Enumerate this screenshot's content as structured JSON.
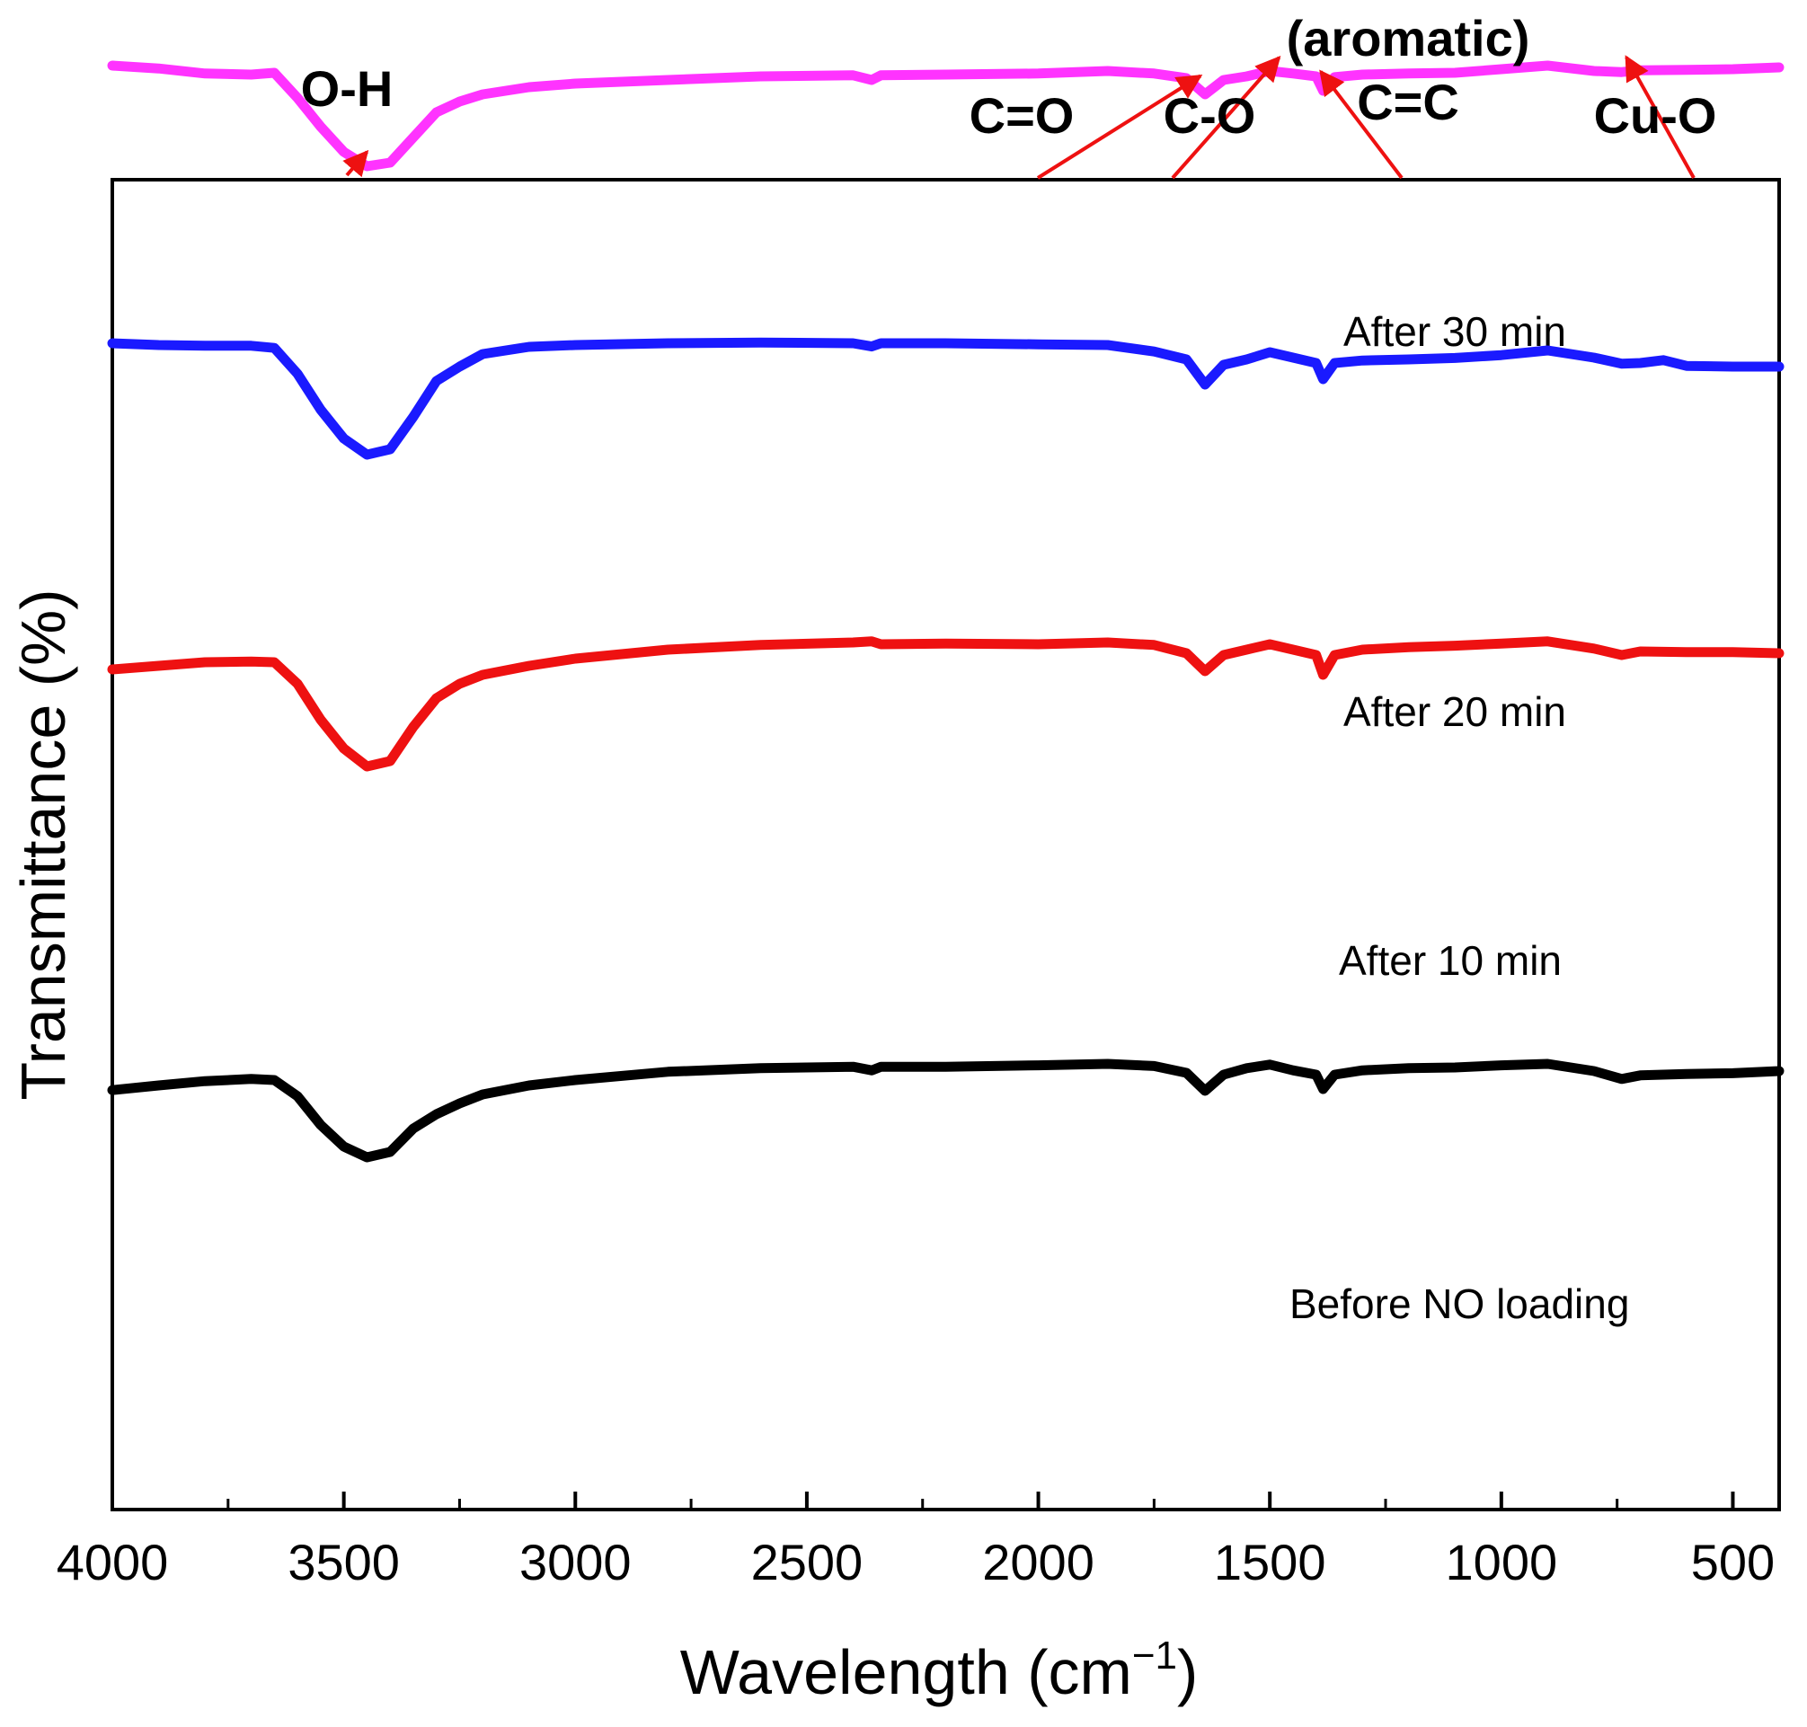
{
  "chart_data": {
    "type": "line",
    "title": "",
    "xlabel": "Wavelength (cm",
    "xlabel_superscript": "−1",
    "xlabel_close": ")",
    "ylabel": "Transmittance (%)",
    "xlim": [
      4000,
      400
    ],
    "x_reversed": true,
    "grid": false,
    "legend": "none",
    "x_ticks": [
      "4000",
      "3500",
      "3000",
      "2500",
      "2000",
      "1500",
      "1000",
      "500"
    ],
    "x_tick_values": [
      4000,
      3500,
      3000,
      2500,
      2000,
      1500,
      1000,
      500
    ],
    "series": [
      {
        "name": "After 30 min",
        "color": "#ff33ff",
        "points": [
          [
            4000,
            0.83
          ],
          [
            3900,
            0.822
          ],
          [
            3800,
            0.808
          ],
          [
            3700,
            0.805
          ],
          [
            3650,
            0.81
          ],
          [
            3600,
            0.74
          ],
          [
            3550,
            0.66
          ],
          [
            3500,
            0.59
          ],
          [
            3450,
            0.55
          ],
          [
            3400,
            0.56
          ],
          [
            3350,
            0.63
          ],
          [
            3300,
            0.7
          ],
          [
            3250,
            0.73
          ],
          [
            3200,
            0.75
          ],
          [
            3100,
            0.77
          ],
          [
            3000,
            0.78
          ],
          [
            2800,
            0.79
          ],
          [
            2600,
            0.8
          ],
          [
            2400,
            0.803
          ],
          [
            2360,
            0.79
          ],
          [
            2340,
            0.803
          ],
          [
            2200,
            0.805
          ],
          [
            2000,
            0.808
          ],
          [
            1850,
            0.815
          ],
          [
            1750,
            0.808
          ],
          [
            1680,
            0.795
          ],
          [
            1640,
            0.75
          ],
          [
            1600,
            0.79
          ],
          [
            1550,
            0.8
          ],
          [
            1500,
            0.815
          ],
          [
            1450,
            0.808
          ],
          [
            1400,
            0.8
          ],
          [
            1385,
            0.76
          ],
          [
            1360,
            0.798
          ],
          [
            1300,
            0.805
          ],
          [
            1200,
            0.808
          ],
          [
            1100,
            0.81
          ],
          [
            1000,
            0.82
          ],
          [
            900,
            0.83
          ],
          [
            800,
            0.815
          ],
          [
            740,
            0.812
          ],
          [
            700,
            0.817
          ],
          [
            600,
            0.818
          ],
          [
            500,
            0.82
          ],
          [
            400,
            0.825
          ]
        ]
      },
      {
        "name": "After 20 min",
        "color": "#1a1aff",
        "points": [
          [
            4000,
            0.645
          ],
          [
            3900,
            0.64
          ],
          [
            3800,
            0.638
          ],
          [
            3700,
            0.638
          ],
          [
            3650,
            0.632
          ],
          [
            3600,
            0.56
          ],
          [
            3550,
            0.46
          ],
          [
            3500,
            0.38
          ],
          [
            3450,
            0.335
          ],
          [
            3400,
            0.35
          ],
          [
            3350,
            0.44
          ],
          [
            3300,
            0.54
          ],
          [
            3250,
            0.58
          ],
          [
            3200,
            0.615
          ],
          [
            3100,
            0.635
          ],
          [
            3000,
            0.64
          ],
          [
            2800,
            0.645
          ],
          [
            2600,
            0.647
          ],
          [
            2400,
            0.645
          ],
          [
            2360,
            0.636
          ],
          [
            2340,
            0.645
          ],
          [
            2200,
            0.645
          ],
          [
            2000,
            0.642
          ],
          [
            1850,
            0.64
          ],
          [
            1750,
            0.622
          ],
          [
            1680,
            0.6
          ],
          [
            1640,
            0.53
          ],
          [
            1600,
            0.585
          ],
          [
            1550,
            0.6
          ],
          [
            1500,
            0.62
          ],
          [
            1450,
            0.605
          ],
          [
            1400,
            0.59
          ],
          [
            1385,
            0.545
          ],
          [
            1360,
            0.59
          ],
          [
            1300,
            0.597
          ],
          [
            1200,
            0.6
          ],
          [
            1100,
            0.604
          ],
          [
            1000,
            0.612
          ],
          [
            900,
            0.625
          ],
          [
            800,
            0.605
          ],
          [
            740,
            0.588
          ],
          [
            700,
            0.59
          ],
          [
            650,
            0.598
          ],
          [
            600,
            0.582
          ],
          [
            500,
            0.58
          ],
          [
            400,
            0.58
          ]
        ]
      },
      {
        "name": "After 10 min",
        "color": "#ee1111",
        "points": [
          [
            4000,
            0.4
          ],
          [
            3900,
            0.41
          ],
          [
            3800,
            0.42
          ],
          [
            3700,
            0.422
          ],
          [
            3650,
            0.42
          ],
          [
            3600,
            0.36
          ],
          [
            3550,
            0.26
          ],
          [
            3500,
            0.18
          ],
          [
            3450,
            0.13
          ],
          [
            3400,
            0.145
          ],
          [
            3350,
            0.24
          ],
          [
            3300,
            0.32
          ],
          [
            3250,
            0.36
          ],
          [
            3200,
            0.385
          ],
          [
            3100,
            0.41
          ],
          [
            3000,
            0.43
          ],
          [
            2800,
            0.455
          ],
          [
            2600,
            0.468
          ],
          [
            2400,
            0.475
          ],
          [
            2360,
            0.478
          ],
          [
            2340,
            0.47
          ],
          [
            2200,
            0.472
          ],
          [
            2000,
            0.47
          ],
          [
            1850,
            0.475
          ],
          [
            1750,
            0.468
          ],
          [
            1680,
            0.445
          ],
          [
            1640,
            0.395
          ],
          [
            1600,
            0.44
          ],
          [
            1550,
            0.455
          ],
          [
            1500,
            0.47
          ],
          [
            1450,
            0.455
          ],
          [
            1400,
            0.44
          ],
          [
            1385,
            0.385
          ],
          [
            1360,
            0.44
          ],
          [
            1300,
            0.455
          ],
          [
            1200,
            0.462
          ],
          [
            1100,
            0.466
          ],
          [
            1000,
            0.472
          ],
          [
            900,
            0.478
          ],
          [
            800,
            0.458
          ],
          [
            740,
            0.44
          ],
          [
            700,
            0.45
          ],
          [
            600,
            0.448
          ],
          [
            500,
            0.448
          ],
          [
            400,
            0.445
          ]
        ]
      },
      {
        "name": "Before NO loading",
        "color": "#000000",
        "points": [
          [
            4000,
            0.167
          ],
          [
            3900,
            0.18
          ],
          [
            3800,
            0.192
          ],
          [
            3700,
            0.198
          ],
          [
            3650,
            0.195
          ],
          [
            3600,
            0.15
          ],
          [
            3550,
            0.07
          ],
          [
            3500,
            0.01
          ],
          [
            3450,
            -0.02
          ],
          [
            3400,
            -0.005
          ],
          [
            3350,
            0.06
          ],
          [
            3300,
            0.1
          ],
          [
            3250,
            0.13
          ],
          [
            3200,
            0.155
          ],
          [
            3100,
            0.18
          ],
          [
            3000,
            0.195
          ],
          [
            2800,
            0.218
          ],
          [
            2600,
            0.228
          ],
          [
            2400,
            0.232
          ],
          [
            2360,
            0.222
          ],
          [
            2340,
            0.232
          ],
          [
            2200,
            0.232
          ],
          [
            2000,
            0.236
          ],
          [
            1850,
            0.24
          ],
          [
            1750,
            0.234
          ],
          [
            1680,
            0.215
          ],
          [
            1640,
            0.165
          ],
          [
            1600,
            0.21
          ],
          [
            1550,
            0.228
          ],
          [
            1500,
            0.238
          ],
          [
            1450,
            0.222
          ],
          [
            1400,
            0.21
          ],
          [
            1385,
            0.17
          ],
          [
            1360,
            0.21
          ],
          [
            1300,
            0.222
          ],
          [
            1200,
            0.228
          ],
          [
            1100,
            0.23
          ],
          [
            1000,
            0.236
          ],
          [
            900,
            0.24
          ],
          [
            800,
            0.22
          ],
          [
            740,
            0.198
          ],
          [
            700,
            0.208
          ],
          [
            600,
            0.212
          ],
          [
            500,
            0.214
          ],
          [
            400,
            0.22
          ]
        ]
      }
    ],
    "annotations": [
      {
        "label": "O-H",
        "target_x": 3450,
        "target_series": 0
      },
      {
        "label": "C=O",
        "target_x": 1650,
        "target_series": 0
      },
      {
        "label": "C-O",
        "target_x": 1480,
        "target_series": 0
      },
      {
        "label_line1": "(aromatic)",
        "label": "C=C",
        "target_x": 1390,
        "target_series": 0
      },
      {
        "label": "Cu-O",
        "target_x": 730,
        "target_series": 0
      }
    ],
    "annotation_color": "#ee1111"
  }
}
